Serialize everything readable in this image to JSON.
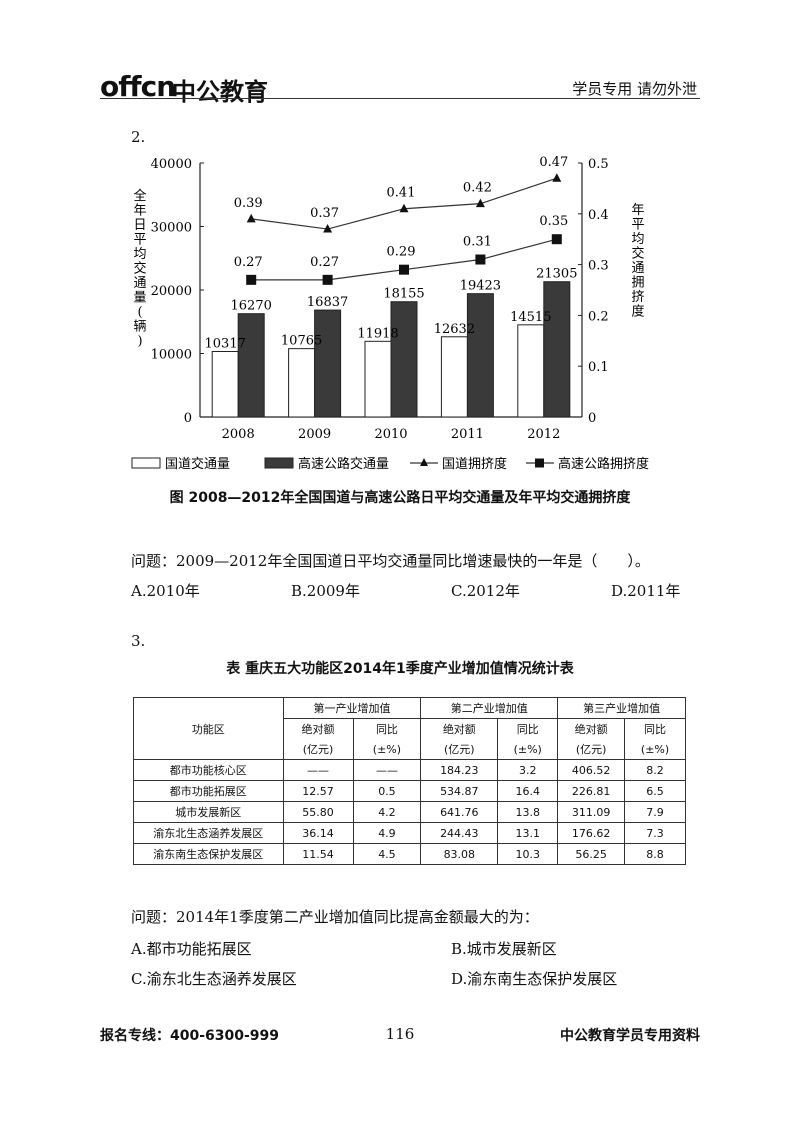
{
  "header": {
    "logo_latin": "offcn",
    "logo_cn": "中公教育",
    "notice": "学员专用 请勿外泄"
  },
  "q2": {
    "number": "2.",
    "caption": "图 2008—2012年全国国道与高速公路日平均交通量及年平均交通拥挤度",
    "question": "问题：2009—2012年全国国道日平均交通量同比增速最快的一年是（　　）。",
    "options": [
      "A.2010年",
      "B.2009年",
      "C.2012年",
      "D.2011年"
    ]
  },
  "chart_data": {
    "type": "bar",
    "categories": [
      "2008",
      "2009",
      "2010",
      "2011",
      "2012"
    ],
    "series": [
      {
        "name": "国道交通量",
        "type": "bar",
        "axis": "left",
        "fill": "#ffffff",
        "values": [
          10317,
          10765,
          11918,
          12632,
          14515
        ]
      },
      {
        "name": "高速公路交通量",
        "type": "bar",
        "axis": "left",
        "fill": "#3a3a3a",
        "values": [
          16270,
          16837,
          18155,
          19423,
          21305
        ]
      },
      {
        "name": "国道拥挤度",
        "type": "line",
        "axis": "right",
        "marker": "triangle",
        "values": [
          0.39,
          0.37,
          0.41,
          0.42,
          0.47
        ]
      },
      {
        "name": "高速公路拥挤度",
        "type": "line",
        "axis": "right",
        "marker": "square",
        "values": [
          0.27,
          0.27,
          0.29,
          0.31,
          0.35
        ]
      }
    ],
    "ylabel": "全年日平均交通量(辆)",
    "y2label": "年平均交通拥挤度",
    "ylim": [
      0,
      40000
    ],
    "y2lim": [
      0,
      0.5
    ],
    "yticks": [
      "0",
      "10000",
      "20000",
      "30000",
      "40000"
    ],
    "y2ticks": [
      "0",
      "0.1",
      "0.2",
      "0.3",
      "0.4",
      "0.5"
    ],
    "legend_position": "bottom"
  },
  "q3": {
    "number": "3.",
    "caption": "表 重庆五大功能区2014年1季度产业增加值情况统计表",
    "table": {
      "corner": "功能区",
      "groups": [
        "第一产业增加值",
        "第二产业增加值",
        "第三产业增加值"
      ],
      "sub1": [
        "绝对额",
        "同比",
        "绝对额",
        "同比",
        "绝对额",
        "同比"
      ],
      "sub2": [
        "(亿元)",
        "(±%)",
        "(亿元)",
        "(±%)",
        "(亿元)",
        "(±%)"
      ],
      "rows": [
        {
          "name": "都市功能核心区",
          "cells": [
            "——",
            "——",
            "184.23",
            "3.2",
            "406.52",
            "8.2"
          ]
        },
        {
          "name": "都市功能拓展区",
          "cells": [
            "12.57",
            "0.5",
            "534.87",
            "16.4",
            "226.81",
            "6.5"
          ]
        },
        {
          "name": "城市发展新区",
          "cells": [
            "55.80",
            "4.2",
            "641.76",
            "13.8",
            "311.09",
            "7.9"
          ]
        },
        {
          "name": "渝东北生态涵养发展区",
          "cells": [
            "36.14",
            "4.9",
            "244.43",
            "13.1",
            "176.62",
            "7.3"
          ]
        },
        {
          "name": "渝东南生态保护发展区",
          "cells": [
            "11.54",
            "4.5",
            "83.08",
            "10.3",
            "56.25",
            "8.8"
          ]
        }
      ]
    },
    "question": "问题：2014年1季度第二产业增加值同比提高金额最大的为：",
    "options": [
      "A.都市功能拓展区",
      "B.城市发展新区",
      "C.渝东北生态涵养发展区",
      "D.渝东南生态保护发展区"
    ]
  },
  "footer": {
    "left": "报名专线：400-6300-999",
    "page": "116",
    "right": "中公教育学员专用资料"
  }
}
